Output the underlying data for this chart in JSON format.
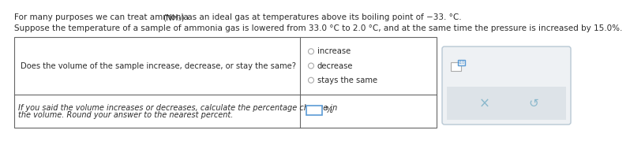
{
  "line1a": "For many purposes we can treat ammonia ",
  "line1_nh3": "(NH₃)",
  "line1b": " as an ideal gas at temperatures above its boiling point of −33. °C.",
  "line2": "Suppose the temperature of a sample of ammonia gas is lowered from 33.0 °C to 2.0 °C, and at the same time the pressure is increased by 15.0%.",
  "q1_left": "Does the volume of the sample increase, decrease, or stay the same?",
  "q1_options": [
    "increase",
    "decrease",
    "stays the same"
  ],
  "q2_left1": "If you said the volume increases or decreases, calculate the percentage change in",
  "q2_left2": "the volume. Round your answer to the nearest percent.",
  "q2_right": "%",
  "bg_color": "#ffffff",
  "table_border_color": "#666666",
  "text_color": "#2b2b2b",
  "radio_color": "#aaaaaa",
  "side_panel_bg": "#eef1f4",
  "side_panel_border": "#b8c8d4",
  "side_panel_btn_bg": "#dde3e8",
  "input_border_color": "#5b9bd5",
  "btn_color": "#8ab8cc",
  "panel_icon_border": "#5b9bd5"
}
